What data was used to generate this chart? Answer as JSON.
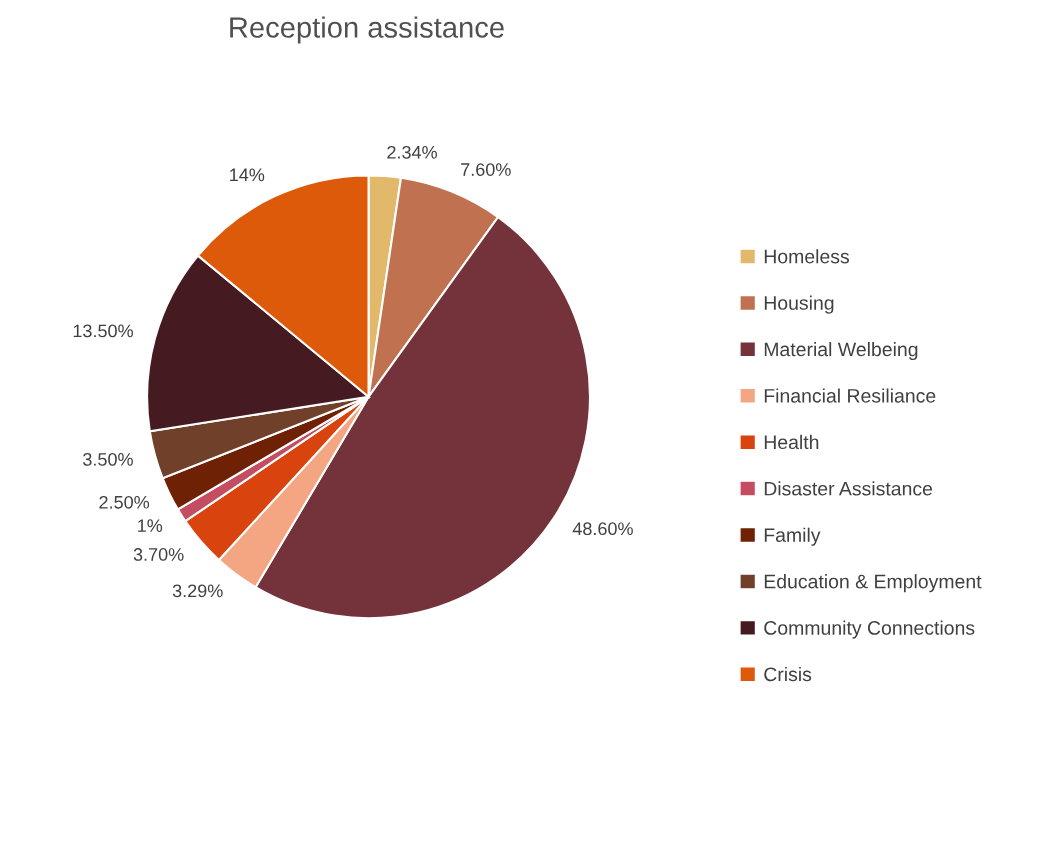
{
  "chart_data": {
    "type": "pie",
    "title": "Reception assistance",
    "categories": [
      "Homeless",
      "Housing",
      "Material Welbeing",
      "Financial Resiliance",
      "Health",
      "Disaster Assistance",
      "Family",
      "Education & Employment",
      "Community Connections",
      "Crisis"
    ],
    "values": [
      2.34,
      7.6,
      48.6,
      3.29,
      3.7,
      1,
      2.5,
      3.5,
      13.5,
      14
    ],
    "value_labels": [
      "2.34%",
      "7.60%",
      "48.60%",
      "3.29%",
      "3.70%",
      "1%",
      "2.50%",
      "3.50%",
      "13.50%",
      "14%"
    ],
    "colors": [
      "#e2b86a",
      "#c07150",
      "#74323a",
      "#f4a582",
      "#d9430e",
      "#c44d62",
      "#6e2105",
      "#70402a",
      "#451a20",
      "#dc5a0a"
    ],
    "legend": "right"
  }
}
